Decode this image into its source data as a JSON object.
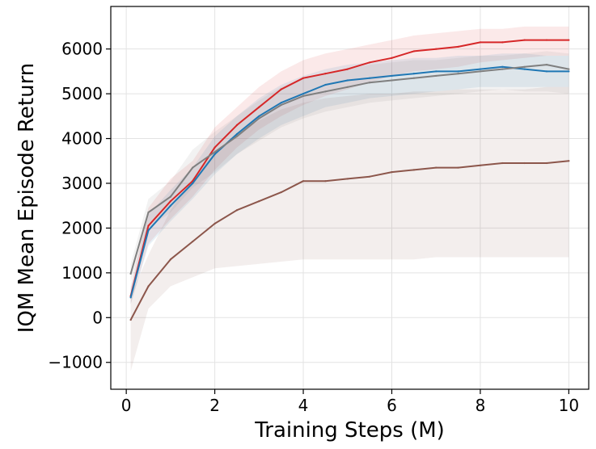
{
  "chart_data": {
    "type": "line",
    "title": "",
    "xlabel": "Training Steps (M)",
    "ylabel": "IQM Mean Episode Return",
    "xlim": [
      -0.35,
      10.45
    ],
    "ylim": [
      -1600,
      6950
    ],
    "xticks": [
      0,
      2,
      4,
      6,
      8,
      10
    ],
    "yticks": [
      -1000,
      0,
      1000,
      2000,
      3000,
      4000,
      5000,
      6000
    ],
    "xtick_labels": [
      "0",
      "2",
      "4",
      "6",
      "8",
      "10"
    ],
    "ytick_labels": [
      "−1000",
      "0",
      "1000",
      "2000",
      "3000",
      "4000",
      "5000",
      "6000"
    ],
    "grid": true,
    "legend": "none",
    "x": [
      0.1,
      0.5,
      1.0,
      1.5,
      2.0,
      2.5,
      3.0,
      3.5,
      4.0,
      4.5,
      5.0,
      5.5,
      6.0,
      6.5,
      7.0,
      7.5,
      8.0,
      8.5,
      9.0,
      9.5,
      10.0
    ],
    "series": [
      {
        "name": "red",
        "color": "#d62728",
        "values": [
          480,
          2050,
          2600,
          3050,
          3800,
          4300,
          4700,
          5100,
          5350,
          5450,
          5550,
          5700,
          5800,
          5950,
          6000,
          6050,
          6150,
          6150,
          6200,
          6200,
          6200
        ],
        "band_lower": [
          300,
          1650,
          2200,
          2700,
          3300,
          3800,
          4200,
          4500,
          4750,
          4950,
          5100,
          5250,
          5400,
          5500,
          5550,
          5600,
          5700,
          5750,
          5800,
          5850,
          5850
        ],
        "band_upper": [
          700,
          2450,
          3100,
          3500,
          4250,
          4700,
          5150,
          5500,
          5750,
          5900,
          6000,
          6100,
          6200,
          6300,
          6350,
          6400,
          6450,
          6450,
          6500,
          6500,
          6500
        ]
      },
      {
        "name": "blue",
        "color": "#1f77b4",
        "values": [
          450,
          1950,
          2500,
          3000,
          3650,
          4100,
          4500,
          4800,
          5000,
          5200,
          5300,
          5350,
          5400,
          5450,
          5500,
          5500,
          5550,
          5600,
          5550,
          5500,
          5500
        ],
        "band_lower": [
          300,
          1600,
          2150,
          2650,
          3200,
          3650,
          4000,
          4300,
          4500,
          4700,
          4800,
          4900,
          4950,
          5000,
          5050,
          5100,
          5150,
          5150,
          5150,
          5150,
          5150
        ],
        "band_upper": [
          650,
          2300,
          2850,
          3350,
          4050,
          4500,
          4900,
          5200,
          5400,
          5550,
          5650,
          5700,
          5750,
          5800,
          5800,
          5850,
          5850,
          5900,
          5900,
          5850,
          5850
        ]
      },
      {
        "name": "gray",
        "color": "#7f7f7f",
        "values": [
          980,
          2350,
          2700,
          3350,
          3700,
          4050,
          4450,
          4750,
          4950,
          5050,
          5150,
          5250,
          5300,
          5350,
          5400,
          5450,
          5500,
          5550,
          5600,
          5650,
          5550
        ],
        "band_lower": [
          800,
          2000,
          2350,
          2900,
          3250,
          3650,
          3950,
          4250,
          4450,
          4600,
          4700,
          4800,
          4850,
          4900,
          4950,
          5000,
          5050,
          5100,
          5050,
          5050,
          5000
        ],
        "band_upper": [
          1200,
          2650,
          3050,
          3750,
          4150,
          4500,
          4850,
          5150,
          5350,
          5450,
          5550,
          5650,
          5700,
          5750,
          5750,
          5800,
          5850,
          5850,
          5900,
          5950,
          5900
        ]
      },
      {
        "name": "brown",
        "color": "#8c564b",
        "values": [
          -50,
          700,
          1300,
          1700,
          2100,
          2400,
          2600,
          2800,
          3050,
          3050,
          3100,
          3150,
          3250,
          3300,
          3350,
          3350,
          3400,
          3450,
          3450,
          3450,
          3500
        ],
        "band_lower": [
          -1200,
          200,
          700,
          900,
          1100,
          1150,
          1200,
          1250,
          1300,
          1300,
          1300,
          1300,
          1300,
          1300,
          1350,
          1350,
          1350,
          1350,
          1350,
          1350,
          1350
        ],
        "band_upper": [
          500,
          1400,
          2400,
          3100,
          3700,
          4100,
          4400,
          4650,
          4800,
          4900,
          4950,
          5000,
          5000,
          5050,
          5050,
          5100,
          5100,
          5100,
          5100,
          5150,
          5150
        ]
      }
    ]
  }
}
